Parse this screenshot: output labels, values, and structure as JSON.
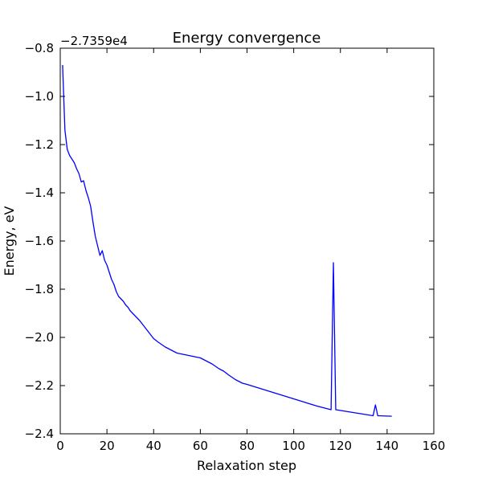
{
  "chart_data": {
    "type": "line",
    "title": "Energy convergence",
    "xlabel": "Relaxation step",
    "ylabel": "Energy, eV",
    "y_offset_label": "−2.7359e4",
    "xlim": [
      0,
      160
    ],
    "ylim": [
      -2.4,
      -0.8
    ],
    "xticks": [
      0,
      20,
      40,
      60,
      80,
      100,
      120,
      140,
      160
    ],
    "xtick_labels": [
      "0",
      "20",
      "40",
      "60",
      "80",
      "100",
      "120",
      "140",
      "160"
    ],
    "yticks": [
      -0.8,
      -1.0,
      -1.2,
      -1.4,
      -1.6,
      -1.8,
      -2.0,
      -2.2,
      -2.4
    ],
    "ytick_labels": [
      "−0.8",
      "−1.0",
      "−1.2",
      "−1.4",
      "−1.6",
      "−1.8",
      "−2.0",
      "−2.2",
      "−2.4"
    ],
    "grid": false,
    "legend": "none",
    "series": [
      {
        "color": "#0000ff",
        "x": [
          1,
          2,
          3,
          4,
          5,
          6,
          7,
          8,
          9,
          10,
          11,
          12,
          13,
          14,
          15,
          16,
          17,
          18,
          19,
          20,
          21,
          22,
          23,
          24,
          25,
          26,
          27,
          28,
          29,
          30,
          32,
          34,
          36,
          38,
          40,
          42,
          45,
          50,
          55,
          60,
          62,
          65,
          68,
          70,
          72,
          75,
          78,
          80,
          85,
          90,
          95,
          100,
          105,
          110,
          116,
          117,
          118,
          134,
          135,
          136,
          142
        ],
        "y": [
          -0.87,
          -1.14,
          -1.22,
          -1.245,
          -1.26,
          -1.275,
          -1.3,
          -1.32,
          -1.355,
          -1.35,
          -1.39,
          -1.42,
          -1.455,
          -1.52,
          -1.58,
          -1.62,
          -1.66,
          -1.64,
          -1.68,
          -1.7,
          -1.73,
          -1.76,
          -1.78,
          -1.81,
          -1.83,
          -1.84,
          -1.85,
          -1.865,
          -1.875,
          -1.89,
          -1.91,
          -1.93,
          -1.955,
          -1.98,
          -2.005,
          -2.02,
          -2.04,
          -2.065,
          -2.075,
          -2.085,
          -2.095,
          -2.11,
          -2.13,
          -2.14,
          -2.155,
          -2.175,
          -2.19,
          -2.195,
          -2.21,
          -2.225,
          -2.24,
          -2.255,
          -2.27,
          -2.285,
          -2.3,
          -1.69,
          -2.3,
          -2.325,
          -2.28,
          -2.325,
          -2.327
        ]
      }
    ]
  }
}
